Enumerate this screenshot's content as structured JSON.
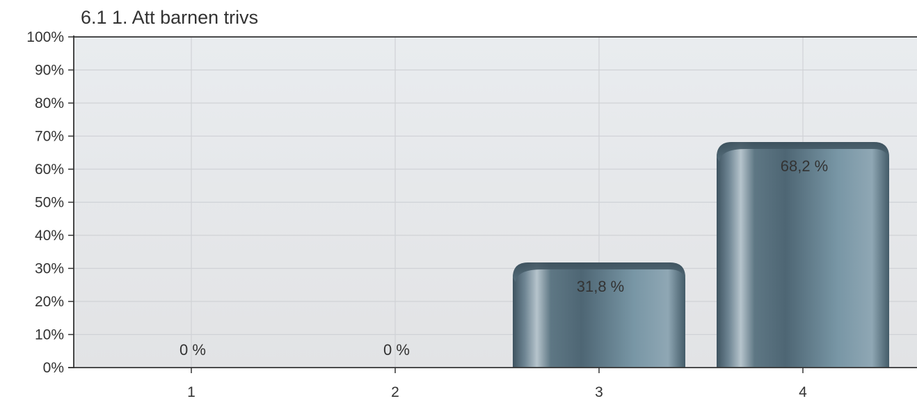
{
  "chart_data": {
    "type": "bar",
    "title": "6.1 1. Att barnen trivs",
    "xlabel": "",
    "ylabel": "",
    "categories": [
      "1",
      "2",
      "3",
      "4"
    ],
    "values": [
      0,
      0,
      31.8,
      68.2
    ],
    "data_labels": [
      "0 %",
      "0 %",
      "31,8 %",
      "68,2 %"
    ],
    "ylim": [
      0,
      100
    ],
    "y_ticks": [
      "0%",
      "10%",
      "20%",
      "30%",
      "40%",
      "50%",
      "60%",
      "70%",
      "80%",
      "90%",
      "100%"
    ],
    "grid": true,
    "legend": "none",
    "colors": {
      "bar_dark": "#3f5663",
      "bar_mid": "#6c8a99",
      "bar_light": "#a3b8c4",
      "plot_bg": "#e6e7e9",
      "grid": "#d0d2d6"
    }
  }
}
